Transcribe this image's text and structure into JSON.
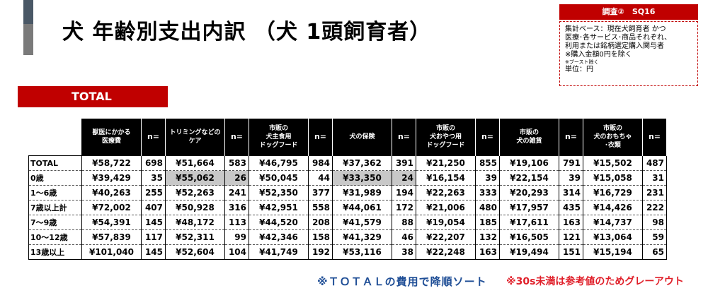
{
  "title": "犬  年齢別支出内訳  （犬 1頭飼育者）",
  "survey_badge": "調査②　SQ16",
  "notes": {
    "line1": "集計ベース：現在犬飼育者  かつ",
    "line2": "医療･各サービス･商品それぞれ、",
    "line3": "利用または銘柄選定購入関与者",
    "line4": "※購入金額0円を除く",
    "line5": "※ブースト除く",
    "line6": "単位：円"
  },
  "section_tab": "TOTAL",
  "table": {
    "headers": [
      {
        "l1": "獣医にかかる",
        "l2": "医療費",
        "l3": ""
      },
      {
        "l1": "n=",
        "l2": "",
        "l3": ""
      },
      {
        "l1": "トリミングなどの",
        "l2": "ケア",
        "l3": ""
      },
      {
        "l1": "n=",
        "l2": "",
        "l3": ""
      },
      {
        "l1": "市販の",
        "l2": "犬主食用",
        "l3": "ドッグフード"
      },
      {
        "l1": "n=",
        "l2": "",
        "l3": ""
      },
      {
        "l1": "犬の保険",
        "l2": "",
        "l3": ""
      },
      {
        "l1": "n=",
        "l2": "",
        "l3": ""
      },
      {
        "l1": "市販の",
        "l2": "犬おやつ用",
        "l3": "ドッグフード"
      },
      {
        "l1": "n=",
        "l2": "",
        "l3": ""
      },
      {
        "l1": "市販の",
        "l2": "犬の雑貨",
        "l3": ""
      },
      {
        "l1": "n=",
        "l2": "",
        "l3": ""
      },
      {
        "l1": "市販の",
        "l2": "犬のおもちゃ",
        "l3": "･衣類"
      },
      {
        "l1": "n=",
        "l2": "",
        "l3": ""
      }
    ],
    "rows": [
      {
        "label": "TOTAL",
        "cells": [
          "¥58,722",
          "698",
          "¥51,664",
          "583",
          "¥46,795",
          "984",
          "¥37,362",
          "391",
          "¥21,250",
          "855",
          "¥19,106",
          "791",
          "¥15,502",
          "487"
        ]
      },
      {
        "label": "0歳",
        "cells": [
          "¥39,429",
          "35",
          "¥55,062",
          "26",
          "¥50,045",
          "44",
          "¥33,350",
          "24",
          "¥16,154",
          "39",
          "¥22,154",
          "39",
          "¥15,058",
          "31"
        ]
      },
      {
        "label": "1～6歳",
        "cells": [
          "¥40,263",
          "255",
          "¥52,263",
          "241",
          "¥52,350",
          "377",
          "¥31,989",
          "194",
          "¥22,263",
          "333",
          "¥20,293",
          "314",
          "¥16,729",
          "231"
        ]
      },
      {
        "label": "7歳以上計",
        "cells": [
          "¥72,002",
          "407",
          "¥50,928",
          "316",
          "¥42,951",
          "558",
          "¥44,061",
          "172",
          "¥21,006",
          "480",
          "¥17,957",
          "435",
          "¥14,426",
          "222"
        ]
      },
      {
        "label": "7～9歳",
        "cells": [
          "¥54,391",
          "145",
          "¥48,172",
          "113",
          "¥44,520",
          "208",
          "¥41,579",
          "88",
          "¥19,054",
          "185",
          "¥17,611",
          "163",
          "¥14,737",
          "98"
        ]
      },
      {
        "label": "10～12歳",
        "cells": [
          "¥57,839",
          "117",
          "¥52,311",
          "99",
          "¥42,346",
          "158",
          "¥41,329",
          "46",
          "¥22,207",
          "132",
          "¥16,505",
          "121",
          "¥13,064",
          "59"
        ]
      },
      {
        "label": "13歳以上",
        "cells": [
          "¥101,040",
          "145",
          "¥52,604",
          "104",
          "¥41,749",
          "192",
          "¥53,116",
          "38",
          "¥22,248",
          "163",
          "¥19,494",
          "151",
          "¥15,194",
          "65"
        ]
      }
    ],
    "grayed_cells": [
      [
        1,
        2
      ],
      [
        1,
        3
      ],
      [
        1,
        6
      ],
      [
        1,
        7
      ]
    ]
  },
  "footer": {
    "sort_note": "※ＴＯＴＡＬの費用で降順ソート",
    "gray_note": "※30s未満は参考値のためグレーアウト"
  },
  "colors": {
    "accent_red": "#c00000",
    "header_black": "#000000",
    "gray_out": "#c8c8c8",
    "sort_blue": "#1f4e96",
    "note_red": "#e0202a"
  }
}
